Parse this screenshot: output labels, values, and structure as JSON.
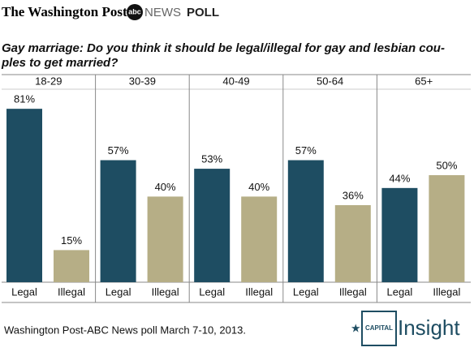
{
  "header": {
    "publisher": "The Washington Post",
    "network": "abc",
    "news": "NEWS",
    "label": "POLL"
  },
  "chart_data": {
    "type": "bar",
    "title": "Gay marriage: Do you think it should be legal/illegal for gay and lesbian cou-",
    "title_line2": "ples to get married?",
    "categories": [
      "18-29",
      "30-39",
      "40-49",
      "50-64",
      "65+"
    ],
    "series": [
      {
        "name": "Legal",
        "color": "#1e4d62",
        "values": [
          81,
          57,
          53,
          57,
          44
        ],
        "value_labels": [
          "81%",
          "57%",
          "53%",
          "57%",
          "44%"
        ]
      },
      {
        "name": "Illegal",
        "color": "#b6ae86",
        "values": [
          15,
          40,
          40,
          36,
          50
        ],
        "value_labels": [
          "15%",
          "40%",
          "40%",
          "36%",
          "50%"
        ]
      }
    ]
  },
  "footer": {
    "source": "Washington Post-ABC News poll March 7-10, 2013.",
    "brand_small": "CAPITAL",
    "brand_large": "Insight"
  }
}
